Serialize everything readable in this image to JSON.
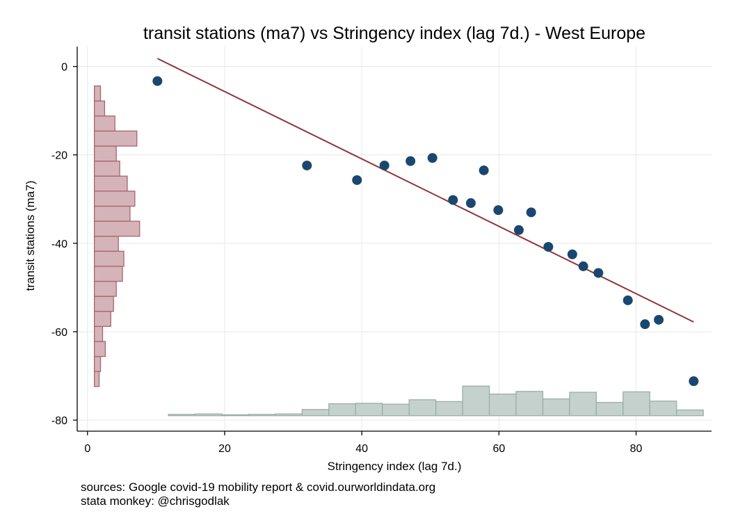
{
  "chart_data": {
    "type": "scatter",
    "title": "transit stations (ma7) vs Stringency index (lag 7d.) - West Europe",
    "xlabel": "Stringency index (lag 7d.)",
    "ylabel": "transit stations (ma7)",
    "xlim": [
      -1.5,
      91
    ],
    "ylim": [
      -82.5,
      4.5
    ],
    "xticks": [
      0,
      20,
      40,
      60,
      80
    ],
    "yticks": [
      0,
      -20,
      -40,
      -60,
      -80
    ],
    "grid": true,
    "legend": "none",
    "colors": {
      "points": "#1a476f",
      "fit_line": "#90353b",
      "y_hist_fill": "#d4b4b8",
      "y_hist_edge": "#a8646c",
      "x_hist_fill": "#c5d1cd",
      "x_hist_edge": "#9aaea7",
      "grid": "#e8e8e8"
    },
    "points": [
      {
        "x": 10.2,
        "y": -3.3
      },
      {
        "x": 32.0,
        "y": -22.4
      },
      {
        "x": 39.3,
        "y": -25.7
      },
      {
        "x": 43.3,
        "y": -22.4
      },
      {
        "x": 47.1,
        "y": -21.4
      },
      {
        "x": 50.3,
        "y": -20.7
      },
      {
        "x": 53.3,
        "y": -30.2
      },
      {
        "x": 55.9,
        "y": -30.9
      },
      {
        "x": 57.8,
        "y": -23.5
      },
      {
        "x": 59.9,
        "y": -32.5
      },
      {
        "x": 62.9,
        "y": -37.0
      },
      {
        "x": 64.7,
        "y": -33.0
      },
      {
        "x": 67.2,
        "y": -40.8
      },
      {
        "x": 70.7,
        "y": -42.5
      },
      {
        "x": 72.3,
        "y": -45.2
      },
      {
        "x": 74.5,
        "y": -46.7
      },
      {
        "x": 78.8,
        "y": -52.9
      },
      {
        "x": 81.3,
        "y": -58.3
      },
      {
        "x": 83.3,
        "y": -57.3
      },
      {
        "x": 88.4,
        "y": -71.2
      }
    ],
    "fit_line": {
      "x": [
        10.2,
        88.4
      ],
      "y": [
        1.8,
        -57.8
      ]
    },
    "y_histogram": {
      "bin_width": 3.4,
      "bins": [
        {
          "lo": -72.4,
          "hi": -69.0,
          "height": 0.7
        },
        {
          "lo": -69.0,
          "hi": -65.6,
          "height": 0.9
        },
        {
          "lo": -65.6,
          "hi": -62.2,
          "height": 1.6
        },
        {
          "lo": -62.2,
          "hi": -58.8,
          "height": 1.2
        },
        {
          "lo": -58.8,
          "hi": -55.4,
          "height": 2.4
        },
        {
          "lo": -55.4,
          "hi": -52.0,
          "height": 2.8
        },
        {
          "lo": -52.0,
          "hi": -48.6,
          "height": 3.2
        },
        {
          "lo": -48.6,
          "hi": -45.2,
          "height": 4.1
        },
        {
          "lo": -45.2,
          "hi": -41.8,
          "height": 4.3
        },
        {
          "lo": -41.8,
          "hi": -38.4,
          "height": 3.5
        },
        {
          "lo": -38.4,
          "hi": -35.0,
          "height": 6.6
        },
        {
          "lo": -35.0,
          "hi": -31.6,
          "height": 5.2
        },
        {
          "lo": -31.6,
          "hi": -28.2,
          "height": 5.9
        },
        {
          "lo": -28.2,
          "hi": -24.8,
          "height": 4.8
        },
        {
          "lo": -24.8,
          "hi": -21.4,
          "height": 3.7
        },
        {
          "lo": -21.4,
          "hi": -18.0,
          "height": 3.2
        },
        {
          "lo": -18.0,
          "hi": -14.6,
          "height": 6.2
        },
        {
          "lo": -14.6,
          "hi": -11.2,
          "height": 3.0
        },
        {
          "lo": -11.2,
          "hi": -7.8,
          "height": 1.5
        },
        {
          "lo": -7.8,
          "hi": -4.4,
          "height": 0.9
        }
      ]
    },
    "x_histogram": {
      "bin_width": 3.9,
      "bins": [
        {
          "lo": 11.8,
          "hi": 15.7,
          "height": 0.3
        },
        {
          "lo": 15.7,
          "hi": 19.6,
          "height": 0.4
        },
        {
          "lo": 19.6,
          "hi": 23.5,
          "height": 0.2
        },
        {
          "lo": 23.5,
          "hi": 27.4,
          "height": 0.3
        },
        {
          "lo": 27.4,
          "hi": 31.3,
          "height": 0.4
        },
        {
          "lo": 31.3,
          "hi": 35.2,
          "height": 1.4
        },
        {
          "lo": 35.2,
          "hi": 39.1,
          "height": 2.7
        },
        {
          "lo": 39.1,
          "hi": 43.0,
          "height": 2.8
        },
        {
          "lo": 43.0,
          "hi": 46.9,
          "height": 2.6
        },
        {
          "lo": 46.9,
          "hi": 50.8,
          "height": 3.6
        },
        {
          "lo": 50.8,
          "hi": 54.7,
          "height": 3.2
        },
        {
          "lo": 54.7,
          "hi": 58.6,
          "height": 6.7
        },
        {
          "lo": 58.6,
          "hi": 62.5,
          "height": 4.9
        },
        {
          "lo": 62.5,
          "hi": 66.4,
          "height": 5.5
        },
        {
          "lo": 66.4,
          "hi": 70.3,
          "height": 3.8
        },
        {
          "lo": 70.3,
          "hi": 74.2,
          "height": 5.3
        },
        {
          "lo": 74.2,
          "hi": 78.1,
          "height": 3.0
        },
        {
          "lo": 78.1,
          "hi": 82.0,
          "height": 5.4
        },
        {
          "lo": 82.0,
          "hi": 85.9,
          "height": 3.3
        },
        {
          "lo": 85.9,
          "hi": 89.8,
          "height": 1.3
        }
      ]
    }
  },
  "notes": {
    "sources": "sources: Google covid-19 mobility report & covid.ourworldindata.org",
    "credit": "stata monkey: @chrisgodlak"
  }
}
